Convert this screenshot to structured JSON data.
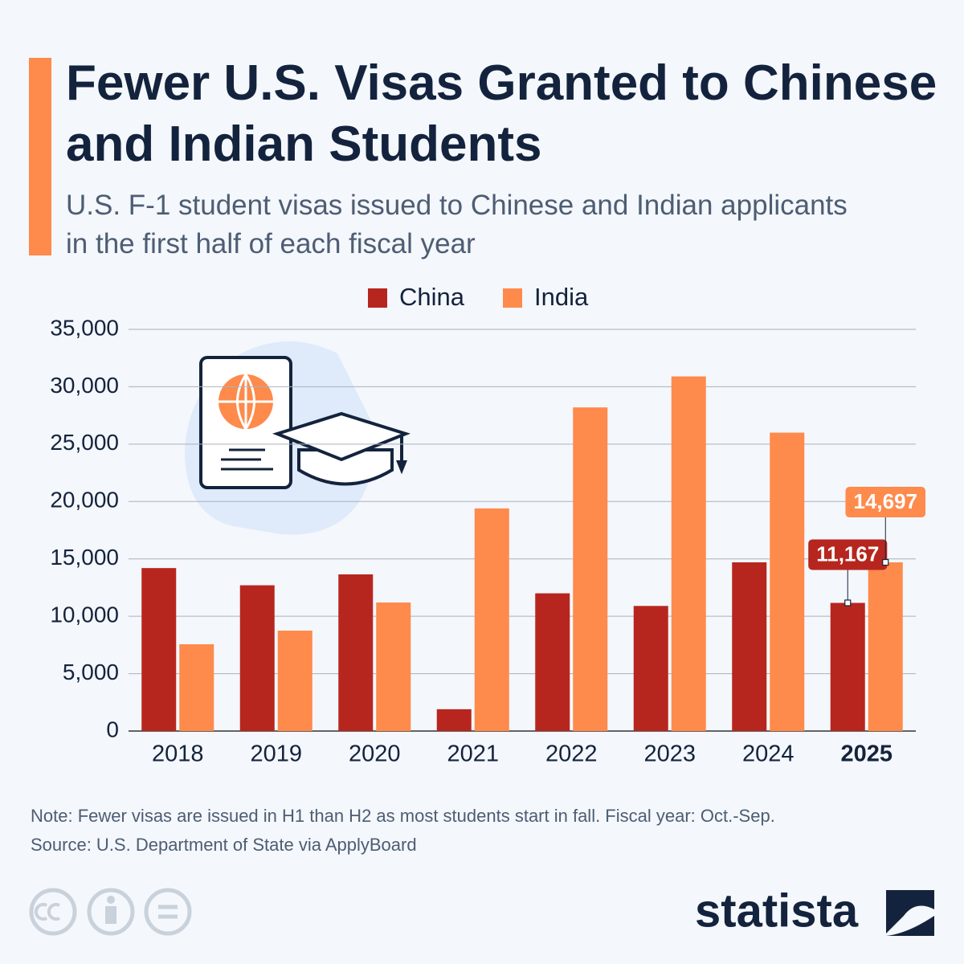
{
  "chart_data": {
    "type": "bar",
    "title": "Fewer U.S. Visas Granted to Chinese and Indian Students",
    "subtitle": "U.S. F-1 student visas issued to Chinese and Indian applicants in the first half of each fiscal year",
    "categories": [
      "2018",
      "2019",
      "2020",
      "2021",
      "2022",
      "2023",
      "2024",
      "2025"
    ],
    "series": [
      {
        "name": "China",
        "color": "#b7261e",
        "values": [
          14200,
          12700,
          13650,
          1900,
          12000,
          10900,
          14700,
          11167
        ],
        "value_labels": [
          null,
          null,
          null,
          null,
          null,
          null,
          null,
          "11,167"
        ]
      },
      {
        "name": "India",
        "color": "#fe8a4b",
        "values": [
          7560,
          8750,
          11200,
          19400,
          28200,
          30900,
          26000,
          14697
        ],
        "value_labels": [
          null,
          null,
          null,
          null,
          null,
          null,
          null,
          "14,697"
        ]
      }
    ],
    "ylim": [
      0,
      35000
    ],
    "yticks": [
      0,
      {
        "value": 5000,
        "label": "5,000"
      },
      {
        "value": 10000,
        "label": "10,000"
      },
      {
        "value": 15000,
        "label": "15,000"
      },
      {
        "value": 20000,
        "label": "20,000"
      },
      {
        "value": 25000,
        "label": "25,000"
      },
      {
        "value": 30000,
        "label": "30,000"
      },
      {
        "value": 35000,
        "label": "35,000"
      }
    ],
    "grid": true,
    "legend": "top",
    "note": "Note: Fewer visas are issued in H1 than H2 as most students start in fall. Fiscal year: Oct.-Sep.",
    "source": "Source: U.S. Department of State via ApplyBoard"
  },
  "logo": "statista"
}
